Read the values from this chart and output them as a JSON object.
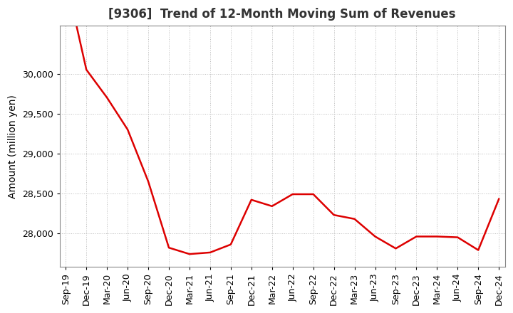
{
  "title": "[9306]  Trend of 12-Month Moving Sum of Revenues",
  "ylabel": "Amount (million yen)",
  "line_color": "#dd0000",
  "background_color": "#ffffff",
  "grid_color": "#bbbbbb",
  "x_labels": [
    "Sep-19",
    "Dec-19",
    "Mar-20",
    "Jun-20",
    "Sep-20",
    "Dec-20",
    "Mar-21",
    "Jun-21",
    "Sep-21",
    "Dec-21",
    "Mar-22",
    "Jun-22",
    "Sep-22",
    "Dec-22",
    "Mar-23",
    "Jun-23",
    "Sep-23",
    "Dec-23",
    "Mar-24",
    "Jun-24",
    "Sep-24",
    "Dec-24"
  ],
  "values": [
    31200,
    30050,
    29700,
    29300,
    28650,
    27820,
    27740,
    27760,
    27860,
    28420,
    28340,
    28490,
    28490,
    28230,
    28180,
    27960,
    27810,
    27960,
    27960,
    27950,
    27790,
    28430
  ],
  "ylim_min": 27580,
  "ylim_max": 30600,
  "yticks": [
    28000,
    28500,
    29000,
    29500,
    30000
  ],
  "title_fontsize": 12,
  "title_color": "#333333",
  "axis_fontsize": 10,
  "tick_fontsize": 9,
  "line_width": 1.8
}
